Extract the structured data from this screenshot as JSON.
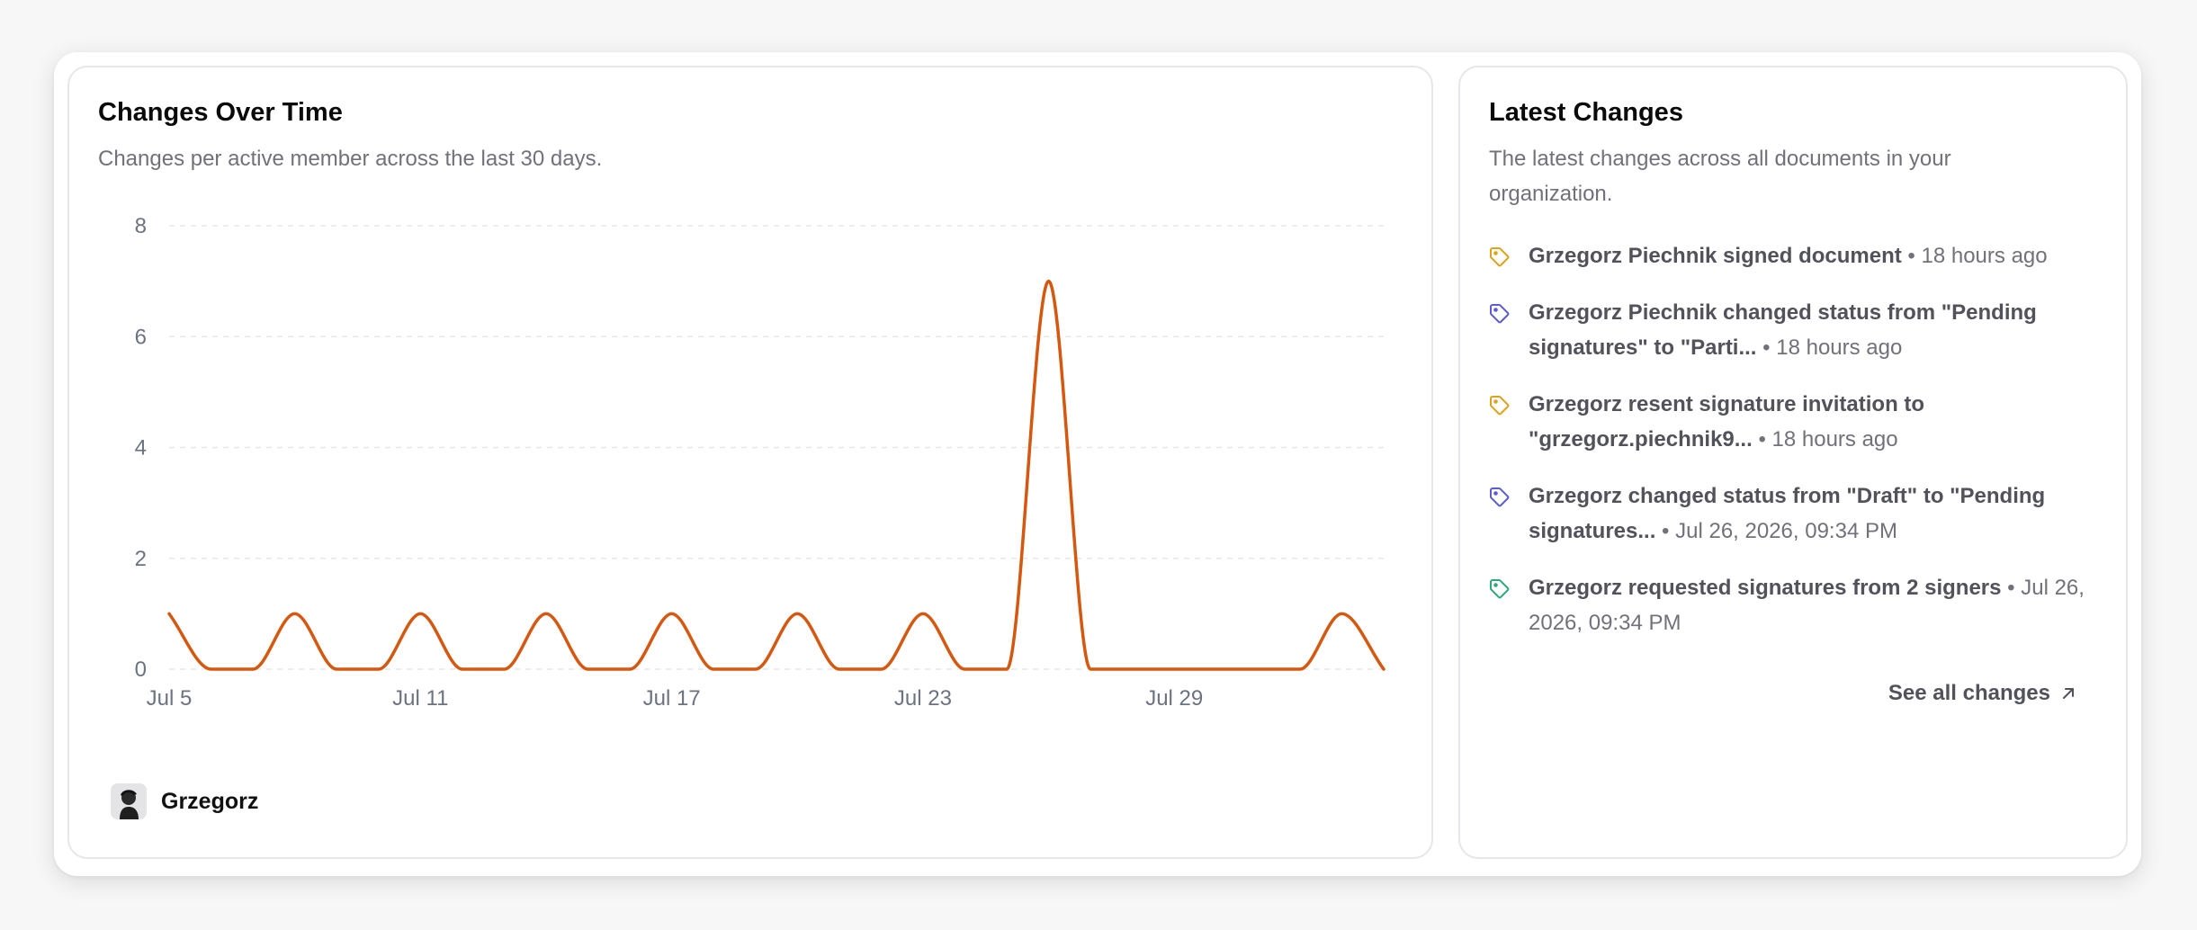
{
  "colors": {
    "line": "#d4580f",
    "grid": "#e5e7eb",
    "tag_yellow": "#e0a21b",
    "tag_indigo": "#5b5bd6",
    "tag_green": "#2fa97c"
  },
  "chart_card": {
    "title": "Changes Over Time",
    "description": "Changes per active member across the last 30 days.",
    "legend": {
      "name": "Grzegorz",
      "avatar_icon": "user-avatar-icon"
    }
  },
  "chart_data": {
    "type": "line",
    "y_ticks": [
      "0",
      "2",
      "4",
      "6",
      "8"
    ],
    "x_ticks": [
      "Jul 5",
      "Jul 11",
      "Jul 17",
      "Jul 23",
      "Jul 29"
    ],
    "ylim": [
      0,
      8
    ],
    "grid": true,
    "series": [
      {
        "name": "Grzegorz",
        "x": [
          "Jul 5",
          "Jul 6",
          "Jul 7",
          "Jul 8",
          "Jul 9",
          "Jul 10",
          "Jul 11",
          "Jul 12",
          "Jul 13",
          "Jul 14",
          "Jul 15",
          "Jul 16",
          "Jul 17",
          "Jul 18",
          "Jul 19",
          "Jul 20",
          "Jul 21",
          "Jul 22",
          "Jul 23",
          "Jul 24",
          "Jul 25",
          "Jul 26",
          "Jul 27",
          "Jul 28",
          "Jul 29",
          "Jul 30",
          "Jul 31",
          "Aug 1",
          "Aug 2",
          "Aug 3"
        ],
        "values": [
          1,
          0,
          0,
          1,
          0,
          0,
          1,
          0,
          0,
          1,
          0,
          0,
          1,
          0,
          0,
          1,
          0,
          0,
          1,
          0,
          0,
          7,
          0,
          0,
          0,
          0,
          0,
          0,
          1,
          0
        ]
      }
    ]
  },
  "latest_card": {
    "title": "Latest Changes",
    "description": "The latest changes across all documents in your organization.",
    "items": [
      {
        "text": "Grzegorz Piechnik signed document",
        "time": "18 hours ago",
        "icon": "tag-icon",
        "color": "#e0a21b"
      },
      {
        "text": "Grzegorz Piechnik changed status from \"Pending signatures\" to \"Parti...",
        "time": "18 hours ago",
        "icon": "tag-icon",
        "color": "#5b5bd6"
      },
      {
        "text": "Grzegorz resent signature invitation to \"grzegorz.piechnik9...",
        "time": "18 hours ago",
        "icon": "tag-icon",
        "color": "#e0a21b"
      },
      {
        "text": "Grzegorz changed status from \"Draft\" to \"Pending signatures...",
        "time": "Jul 26, 2026, 09:34 PM",
        "icon": "tag-icon",
        "color": "#5b5bd6"
      },
      {
        "text": "Grzegorz requested signatures from 2 signers",
        "time": "Jul 26, 2026, 09:34 PM",
        "icon": "tag-icon",
        "color": "#2fa97c"
      }
    ],
    "separator": "•",
    "see_all_label": "See all changes",
    "see_all_icon": "arrow-up-right-icon"
  }
}
